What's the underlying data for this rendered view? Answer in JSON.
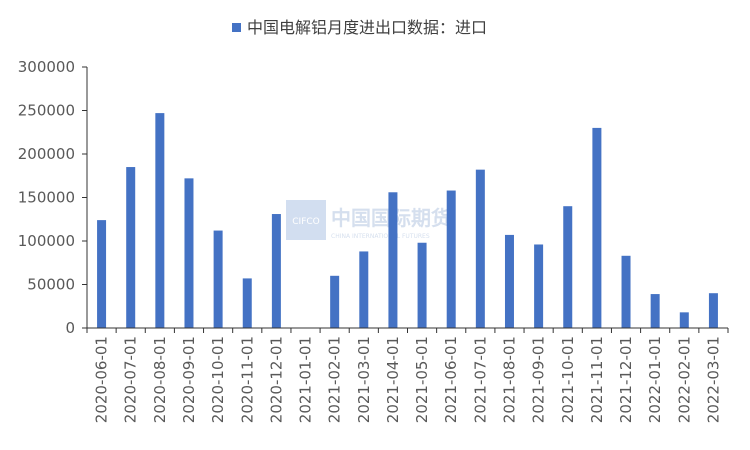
{
  "chart_data": {
    "type": "bar",
    "legend": {
      "label": "中国电解铝月度进出口数据：进口",
      "position": "top"
    },
    "colors": {
      "bar": "#4472C4",
      "axis": "#333333"
    },
    "categories": [
      "2020-06-01",
      "2020-07-01",
      "2020-08-01",
      "2020-09-01",
      "2020-10-01",
      "2020-11-01",
      "2020-12-01",
      "2021-01-01",
      "2021-02-01",
      "2021-03-01",
      "2021-04-01",
      "2021-05-01",
      "2021-06-01",
      "2021-07-01",
      "2021-08-01",
      "2021-09-01",
      "2021-10-01",
      "2021-11-01",
      "2021-12-01",
      "2022-01-01",
      "2022-02-01",
      "2022-03-01"
    ],
    "series": [
      {
        "name": "中国电解铝月度进出口数据：进口",
        "values": [
          124000,
          185000,
          247000,
          172000,
          112000,
          57000,
          131000,
          0,
          60000,
          88000,
          156000,
          98000,
          158000,
          182000,
          107000,
          96000,
          140000,
          230000,
          83000,
          39000,
          18000,
          40000
        ]
      }
    ],
    "ylim": [
      0,
      300000
    ],
    "yticks": [
      0,
      50000,
      100000,
      150000,
      200000,
      250000,
      300000
    ],
    "ytick_labels": [
      "0",
      "50000",
      "100000",
      "150000",
      "200000",
      "250000",
      "300000"
    ],
    "grid": false
  },
  "watermark": {
    "logo_text": "CIFCO",
    "cn_text": "中国国际期货",
    "en_text": "CHINA INTERNATIONAL FUTURES"
  }
}
